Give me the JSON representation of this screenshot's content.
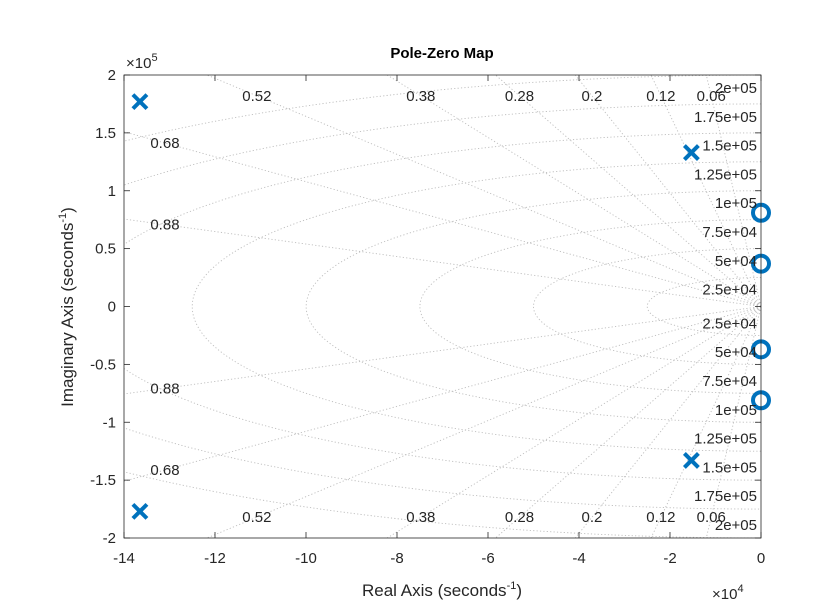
{
  "chart_data": {
    "type": "scatter",
    "title": "Pole-Zero Map",
    "xlabel": "Real Axis (seconds",
    "ylabel": "Imaginary Axis (seconds",
    "unit_exponent": "-1",
    "x_multiplier": "×10",
    "x_multiplier_exp": "4",
    "y_multiplier": "×10",
    "y_multiplier_exp": "5",
    "xlim": [
      -140000,
      0
    ],
    "ylim": [
      -200000,
      200000
    ],
    "x_ticks": [
      -140000,
      -120000,
      -100000,
      -80000,
      -60000,
      -40000,
      -20000,
      0
    ],
    "x_tick_labels": [
      "-14",
      "-12",
      "-10",
      "-8",
      "-6",
      "-4",
      "-2",
      "0"
    ],
    "y_ticks": [
      200000,
      150000,
      100000,
      50000,
      0,
      -50000,
      -100000,
      -150000,
      -200000
    ],
    "y_tick_labels": [
      "2",
      "1.5",
      "1",
      "0.5",
      "0",
      "-0.5",
      "-1",
      "-1.5",
      "-2"
    ],
    "grid": true,
    "damping_lines": [
      0.06,
      0.12,
      0.2,
      0.28,
      0.38,
      0.52,
      0.68,
      0.88
    ],
    "damping_labels": [
      {
        "text": "0.52",
        "zeta": 0.52
      },
      {
        "text": "0.38",
        "zeta": 0.38
      },
      {
        "text": "0.28",
        "zeta": 0.28
      },
      {
        "text": "0.2",
        "zeta": 0.2
      },
      {
        "text": "0.12",
        "zeta": 0.12
      },
      {
        "text": "0.06",
        "zeta": 0.06
      },
      {
        "text": "0.68",
        "zeta": 0.68
      },
      {
        "text": "0.88",
        "zeta": 0.88
      }
    ],
    "frequency_circles": [
      25000,
      50000,
      75000,
      100000,
      125000,
      150000,
      175000,
      200000
    ],
    "frequency_labels": [
      "2e+05",
      "1.75e+05",
      "1.5e+05",
      "1.25e+05",
      "1e+05",
      "7.5e+04",
      "5e+04",
      "2.5e+04"
    ],
    "series": [
      {
        "marker": "x",
        "points": [
          {
            "x": -136500,
            "y": 177000
          },
          {
            "x": -136500,
            "y": -177000
          },
          {
            "x": -15300,
            "y": 133000
          },
          {
            "x": -15300,
            "y": -133000
          }
        ]
      },
      {
        "marker": "o",
        "points": [
          {
            "x": 0,
            "y": 81000
          },
          {
            "x": 0,
            "y": 37000
          },
          {
            "x": 0,
            "y": -37000
          },
          {
            "x": 0,
            "y": -81000
          }
        ]
      }
    ],
    "marker_color": "#0072BD",
    "grid_color": "#bdbdbd"
  }
}
